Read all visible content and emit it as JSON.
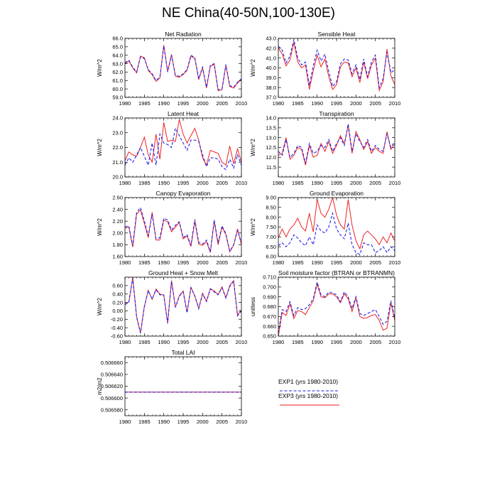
{
  "page": {
    "title": "NE China(40-50N,100-130E)"
  },
  "legend": [
    {
      "name": "EXP1 (yrs 1980-2010)",
      "color": "#2222ee",
      "dash": true
    },
    {
      "name": "EXP3 (yrs 1980-2010)",
      "color": "#ee2222",
      "dash": false
    }
  ],
  "chart_data": [
    {
      "type": "line",
      "title": "Net Radiation",
      "ylabel": "W/m^2",
      "xlim": [
        1980,
        2010
      ],
      "ylim": [
        59.0,
        66.0
      ],
      "xticks": [
        1980,
        1985,
        1990,
        1995,
        2000,
        2005,
        2010
      ],
      "yticks": [
        59,
        60,
        61,
        62,
        63,
        64,
        65,
        66
      ],
      "ytick_decimals": 1,
      "x_start": 1980,
      "series": [
        {
          "name": "EXP1",
          "values": [
            63.1,
            63.4,
            62.6,
            62.0,
            63.8,
            63.6,
            62.3,
            61.8,
            61.0,
            61.4,
            65.1,
            62.0,
            64.0,
            61.6,
            61.5,
            61.8,
            62.3,
            64.0,
            63.7,
            61.2,
            62.6,
            60.2,
            62.8,
            63.0,
            59.9,
            60.0,
            62.9,
            60.4,
            60.2,
            60.8,
            61.2
          ]
        },
        {
          "name": "EXP3",
          "values": [
            63.0,
            63.3,
            62.5,
            61.9,
            63.9,
            63.7,
            62.2,
            61.7,
            60.9,
            61.3,
            65.2,
            62.1,
            64.1,
            61.5,
            61.4,
            61.7,
            62.2,
            63.9,
            63.6,
            61.1,
            62.5,
            60.1,
            62.7,
            62.9,
            59.8,
            59.9,
            62.8,
            60.3,
            60.1,
            60.7,
            61.1
          ]
        }
      ]
    },
    {
      "type": "line",
      "title": "Sensible Heat",
      "ylabel": "W/m^2",
      "xlim": [
        1980,
        2010
      ],
      "ylim": [
        37.0,
        43.0
      ],
      "xticks": [
        1980,
        1985,
        1990,
        1995,
        2000,
        2005,
        2010
      ],
      "yticks": [
        37,
        38,
        39,
        40,
        41,
        42,
        43
      ],
      "ytick_decimals": 1,
      "x_start": 1980,
      "series": [
        {
          "name": "EXP1",
          "values": [
            42.2,
            41.8,
            40.5,
            41.2,
            42.9,
            41.0,
            40.3,
            40.6,
            38.2,
            40.2,
            41.8,
            40.7,
            41.4,
            39.6,
            38.1,
            38.6,
            40.4,
            40.9,
            40.8,
            39.4,
            40.3,
            38.8,
            40.9,
            39.1,
            40.6,
            41.3,
            38.0,
            38.9,
            41.6,
            39.5,
            39.8
          ]
        },
        {
          "name": "EXP3",
          "values": [
            42.0,
            41.4,
            40.2,
            40.8,
            42.6,
            40.6,
            40.0,
            40.3,
            37.8,
            39.7,
            41.3,
            40.1,
            40.9,
            39.1,
            37.8,
            38.3,
            40.1,
            40.6,
            40.5,
            39.1,
            40.0,
            38.5,
            40.6,
            38.9,
            40.3,
            41.0,
            37.7,
            38.6,
            41.9,
            39.2,
            38.3
          ]
        }
      ]
    },
    {
      "type": "line",
      "title": "Latent Heat",
      "ylabel": "W/m^2",
      "xlim": [
        1980,
        2010
      ],
      "ylim": [
        20.0,
        24.0
      ],
      "xticks": [
        1980,
        1985,
        1990,
        1995,
        2000,
        2005,
        2010
      ],
      "yticks": [
        20,
        21,
        22,
        23,
        24
      ],
      "ytick_decimals": 1,
      "x_start": 1980,
      "series": [
        {
          "name": "EXP1",
          "values": [
            20.8,
            21.3,
            21.0,
            21.5,
            22.0,
            21.4,
            20.8,
            22.3,
            20.8,
            22.9,
            22.3,
            22.2,
            22.0,
            23.3,
            22.8,
            22.3,
            21.8,
            22.5,
            22.5,
            22.4,
            21.5,
            20.7,
            21.3,
            21.3,
            21.2,
            20.7,
            20.5,
            21.2,
            20.6,
            21.5,
            20.8
          ]
        },
        {
          "name": "EXP3",
          "values": [
            21.1,
            21.7,
            21.5,
            21.4,
            22.0,
            22.7,
            21.5,
            21.0,
            22.9,
            21.2,
            23.7,
            22.4,
            22.5,
            22.4,
            23.9,
            22.9,
            22.3,
            22.8,
            23.3,
            22.5,
            21.3,
            20.8,
            21.8,
            21.7,
            21.6,
            21.0,
            20.8,
            22.1,
            20.9,
            21.9,
            21.0
          ]
        }
      ]
    },
    {
      "type": "line",
      "title": "Transpiration",
      "ylabel": "W/m^2",
      "xlim": [
        1980,
        2010
      ],
      "ylim": [
        11.0,
        14.0
      ],
      "xticks": [
        1980,
        1985,
        1990,
        1995,
        2000,
        2005,
        2010
      ],
      "yticks": [
        11.5,
        12.0,
        12.5,
        13.0,
        13.5,
        14.0
      ],
      "ytick_decimals": 1,
      "x_start": 1980,
      "series": [
        {
          "name": "EXP1",
          "values": [
            12.3,
            12.1,
            12.9,
            12.0,
            12.2,
            12.6,
            12.5,
            11.7,
            12.7,
            12.2,
            12.3,
            12.6,
            12.5,
            12.9,
            12.3,
            12.7,
            13.0,
            12.6,
            13.7,
            12.3,
            13.2,
            12.8,
            12.5,
            12.9,
            12.3,
            12.6,
            12.4,
            12.3,
            13.2,
            12.5,
            12.8
          ]
        },
        {
          "name": "EXP3",
          "values": [
            12.1,
            12.2,
            13.0,
            11.9,
            12.1,
            12.5,
            12.4,
            11.6,
            12.6,
            12.0,
            12.1,
            12.7,
            12.3,
            12.8,
            12.2,
            12.6,
            13.1,
            12.7,
            13.6,
            12.2,
            13.3,
            12.9,
            12.4,
            12.8,
            12.2,
            12.5,
            12.3,
            12.2,
            13.3,
            12.4,
            12.7
          ]
        }
      ]
    },
    {
      "type": "line",
      "title": "Canopy Evaporation",
      "ylabel": "W/m^2",
      "xlim": [
        1980,
        2010
      ],
      "ylim": [
        1.6,
        2.6
      ],
      "xticks": [
        1980,
        1985,
        1990,
        1995,
        2000,
        2005,
        2010
      ],
      "yticks": [
        1.6,
        1.8,
        2.0,
        2.2,
        2.4,
        2.6
      ],
      "ytick_decimals": 2,
      "x_start": 1980,
      "series": [
        {
          "name": "EXP1",
          "values": [
            2.1,
            2.12,
            1.78,
            2.35,
            2.43,
            2.2,
            1.95,
            2.32,
            1.9,
            1.92,
            2.25,
            2.22,
            2.05,
            2.13,
            2.19,
            1.92,
            1.97,
            1.79,
            2.23,
            1.84,
            1.81,
            1.88,
            1.68,
            2.22,
            1.83,
            2.12,
            1.99,
            1.69,
            1.8,
            2.04,
            1.83
          ]
        },
        {
          "name": "EXP3",
          "values": [
            2.08,
            2.1,
            1.76,
            2.32,
            2.39,
            2.16,
            1.92,
            2.35,
            1.88,
            1.88,
            2.22,
            2.19,
            2.02,
            2.1,
            2.18,
            1.9,
            1.95,
            1.77,
            2.2,
            1.81,
            1.79,
            1.85,
            1.67,
            2.2,
            1.8,
            2.1,
            1.97,
            1.68,
            1.79,
            2.07,
            1.8
          ]
        }
      ]
    },
    {
      "type": "line",
      "title": "Ground Evaporation",
      "ylabel": "W/m^2",
      "xlim": [
        1980,
        2010
      ],
      "ylim": [
        6.0,
        9.0
      ],
      "xticks": [
        1980,
        1985,
        1990,
        1995,
        2000,
        2005,
        2010
      ],
      "yticks": [
        6,
        6.5,
        7,
        7.5,
        8,
        8.5,
        9
      ],
      "ytick_decimals": 2,
      "x_start": 1980,
      "series": [
        {
          "name": "EXP1",
          "values": [
            6.55,
            6.7,
            6.5,
            6.7,
            7.1,
            6.95,
            6.7,
            6.55,
            7.0,
            6.6,
            7.6,
            7.3,
            7.2,
            7.5,
            8.2,
            7.4,
            7.1,
            6.9,
            7.7,
            6.6,
            6.2,
            6.1,
            6.7,
            6.6,
            6.6,
            6.2,
            6.3,
            6.5,
            6.2,
            6.5,
            6.3
          ]
        },
        {
          "name": "EXP3",
          "values": [
            6.95,
            7.4,
            7.0,
            7.4,
            7.6,
            7.95,
            7.5,
            7.3,
            8.2,
            7.25,
            8.9,
            8.2,
            8.0,
            8.4,
            9.0,
            8.1,
            7.6,
            7.4,
            8.9,
            7.6,
            6.8,
            6.4,
            7.1,
            7.3,
            7.1,
            6.9,
            6.6,
            7.0,
            6.7,
            7.2,
            6.8
          ]
        }
      ]
    },
    {
      "type": "line",
      "title": "Ground Heat + Snow Melt",
      "ylabel": "W/m^2",
      "xlim": [
        1980,
        2010
      ],
      "ylim": [
        -0.6,
        0.8
      ],
      "xticks": [
        1980,
        1985,
        1990,
        1995,
        2000,
        2005,
        2010
      ],
      "yticks": [
        -0.6,
        -0.4,
        -0.2,
        0,
        0.2,
        0.4,
        0.6
      ],
      "ytick_decimals": 2,
      "x_start": 1980,
      "series": [
        {
          "name": "EXP1",
          "values": [
            0.15,
            0.2,
            0.78,
            -0.15,
            -0.53,
            0.1,
            0.48,
            0.28,
            0.5,
            0.38,
            0.38,
            -0.3,
            0.7,
            0.08,
            0.35,
            0.45,
            -0.05,
            0.55,
            0.35,
            0.05,
            0.4,
            0.22,
            0.52,
            0.45,
            0.38,
            0.55,
            0.3,
            0.58,
            0.7,
            -0.12,
            0.0
          ]
        },
        {
          "name": "EXP3",
          "values": [
            0.16,
            0.21,
            0.8,
            -0.13,
            -0.52,
            0.11,
            0.49,
            0.27,
            0.52,
            0.4,
            0.37,
            -0.28,
            0.72,
            0.09,
            0.36,
            0.47,
            -0.03,
            0.56,
            0.36,
            0.06,
            0.42,
            0.23,
            0.53,
            0.47,
            0.39,
            0.57,
            0.31,
            0.6,
            0.72,
            -0.1,
            0.02
          ]
        }
      ]
    },
    {
      "type": "line",
      "title": "Soil moisture factor (BTRAN or BTRANMN)",
      "ylabel": "unitless",
      "xlim": [
        1980,
        2010
      ],
      "ylim": [
        0.65,
        0.71
      ],
      "xticks": [
        1980,
        1985,
        1990,
        1995,
        2000,
        2005,
        2010
      ],
      "yticks": [
        0.65,
        0.66,
        0.67,
        0.68,
        0.69,
        0.7,
        0.71
      ],
      "ytick_decimals": 3,
      "x_start": 1980,
      "series": [
        {
          "name": "EXP1",
          "values": [
            0.653,
            0.677,
            0.675,
            0.685,
            0.671,
            0.679,
            0.677,
            0.678,
            0.682,
            0.688,
            0.705,
            0.692,
            0.69,
            0.695,
            0.694,
            0.692,
            0.685,
            0.695,
            0.69,
            0.678,
            0.69,
            0.673,
            0.671,
            0.673,
            0.675,
            0.677,
            0.67,
            0.662,
            0.665,
            0.686,
            0.668
          ]
        },
        {
          "name": "EXP3",
          "values": [
            0.65,
            0.674,
            0.671,
            0.683,
            0.668,
            0.676,
            0.675,
            0.672,
            0.679,
            0.686,
            0.703,
            0.69,
            0.689,
            0.693,
            0.693,
            0.69,
            0.684,
            0.693,
            0.688,
            0.675,
            0.689,
            0.67,
            0.668,
            0.669,
            0.671,
            0.672,
            0.666,
            0.656,
            0.658,
            0.684,
            0.666
          ]
        }
      ]
    },
    {
      "type": "line",
      "title": "Total LAI",
      "ylabel": "m2/m2",
      "xlim": [
        1980,
        2010
      ],
      "ylim": [
        0.50657,
        0.50667
      ],
      "xticks": [
        1980,
        1985,
        1990,
        1995,
        2000,
        2005,
        2010
      ],
      "yticks": [
        0.50658,
        0.5066,
        0.50662,
        0.50664,
        0.50666
      ],
      "ytick_decimals": 6,
      "x_start": 1980,
      "series": [
        {
          "name": "EXP1",
          "values": [
            0.50661,
            0.50661,
            0.50661,
            0.50661,
            0.50661,
            0.50661,
            0.50661,
            0.50661,
            0.50661,
            0.50661,
            0.50661,
            0.50661,
            0.50661,
            0.50661,
            0.50661,
            0.50661,
            0.50661,
            0.50661,
            0.50661,
            0.50661,
            0.50661,
            0.50661,
            0.50661,
            0.50661,
            0.50661,
            0.50661,
            0.50661,
            0.50661,
            0.50661,
            0.50661,
            0.50661
          ]
        },
        {
          "name": "EXP3",
          "values": [
            0.50661,
            0.50661,
            0.50661,
            0.50661,
            0.50661,
            0.50661,
            0.50661,
            0.50661,
            0.50661,
            0.50661,
            0.50661,
            0.50661,
            0.50661,
            0.50661,
            0.50661,
            0.50661,
            0.50661,
            0.50661,
            0.50661,
            0.50661,
            0.50661,
            0.50661,
            0.50661,
            0.50661,
            0.50661,
            0.50661,
            0.50661,
            0.50661,
            0.50661,
            0.50661,
            0.50661
          ]
        }
      ]
    }
  ]
}
